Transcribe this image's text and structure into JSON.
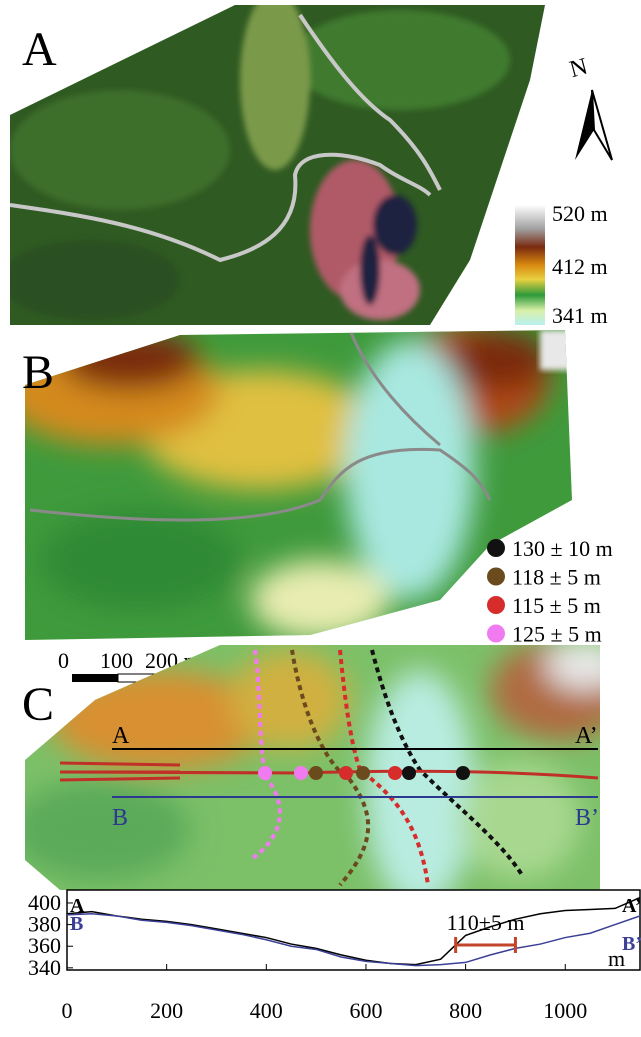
{
  "panel_a": {
    "label": "A",
    "north": "N",
    "colorbar": {
      "labels": [
        "520 m",
        "412 m",
        "341 m"
      ]
    }
  },
  "panel_b": {
    "label": "B",
    "legend": [
      {
        "label": "130 ± 10 m",
        "color": "#111111"
      },
      {
        "label": "118 ± 5 m",
        "color": "#6b4a1e"
      },
      {
        "label": "115 ± 5 m",
        "color": "#d62c2c"
      },
      {
        "label": "125 ± 5 m",
        "color": "#f07af0"
      }
    ]
  },
  "scale_bar": {
    "labels": [
      "0",
      "100",
      "200 m"
    ]
  },
  "panel_c": {
    "label": "C",
    "profile_lines": [
      {
        "start": "A",
        "end": "A’",
        "color": "#000000"
      },
      {
        "start": "B",
        "end": "B’",
        "color": "#2b3a8f"
      }
    ]
  },
  "profile": {
    "type": "line",
    "xlim": [
      0,
      1150
    ],
    "ylim": [
      338,
      412
    ],
    "xticks": [
      0,
      200,
      400,
      600,
      800,
      1000
    ],
    "yticks": [
      340,
      360,
      380,
      400
    ],
    "x_unit": "m",
    "annotation": {
      "text": "110±5 m",
      "range": [
        780,
        900
      ],
      "color": "#c0452a"
    },
    "x": [
      0,
      50,
      100,
      150,
      200,
      250,
      300,
      350,
      400,
      450,
      500,
      550,
      600,
      650,
      700,
      750,
      800,
      850,
      900,
      950,
      1000,
      1050,
      1100,
      1150
    ],
    "series": [
      {
        "name": "A",
        "end_label": "A’",
        "color": "#000000",
        "values": [
          390,
          392,
          388,
          385,
          383,
          380,
          376,
          372,
          368,
          362,
          358,
          352,
          347,
          344,
          343,
          348,
          370,
          378,
          385,
          390,
          393,
          394,
          395,
          405
        ]
      },
      {
        "name": "B",
        "end_label": "B’",
        "color": "#3b3f95",
        "values": [
          389,
          390,
          388,
          384,
          382,
          379,
          375,
          371,
          366,
          360,
          357,
          350,
          346,
          344,
          342,
          343,
          345,
          352,
          358,
          362,
          368,
          372,
          380,
          388
        ]
      }
    ]
  }
}
